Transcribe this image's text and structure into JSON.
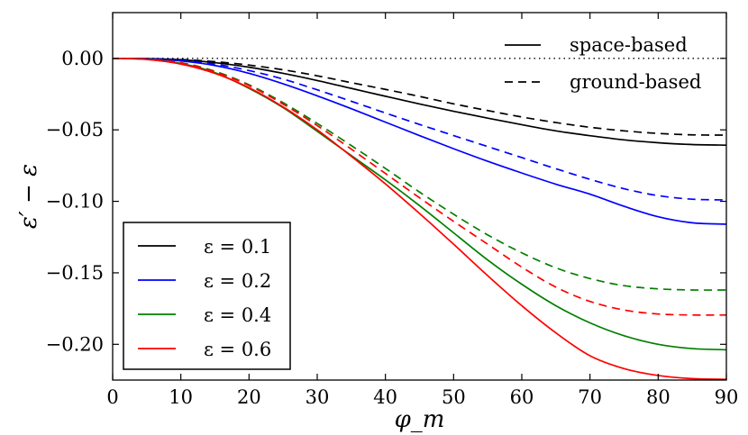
{
  "chart_data": {
    "type": "line",
    "title": "",
    "xlabel": "φ_m",
    "ylabel": "ε′ − ε",
    "xlim": [
      0,
      90
    ],
    "ylim": [
      -0.225,
      0.032
    ],
    "x_ticks": [
      0,
      10,
      20,
      30,
      40,
      50,
      60,
      70,
      80,
      90
    ],
    "y_ticks": [
      0.0,
      -0.05,
      -0.1,
      -0.15,
      -0.2
    ],
    "x_tick_labels": [
      "0",
      "10",
      "20",
      "30",
      "40",
      "50",
      "60",
      "70",
      "80",
      "90"
    ],
    "y_tick_labels": [
      "0.00",
      "−0.05",
      "−0.10",
      "−0.15",
      "−0.20"
    ],
    "x": [
      0,
      5,
      10,
      15,
      20,
      25,
      30,
      35,
      40,
      45,
      50,
      55,
      60,
      65,
      70,
      75,
      80,
      85,
      90
    ],
    "series": [
      {
        "name": "ε = 0.1 space-based",
        "epsilon": "0.1",
        "color": "#000000",
        "style": "solid",
        "values": [
          0,
          -0.0002,
          -0.001,
          -0.003,
          -0.0062,
          -0.0105,
          -0.0155,
          -0.021,
          -0.0265,
          -0.0319,
          -0.037,
          -0.0418,
          -0.0464,
          -0.0507,
          -0.0541,
          -0.057,
          -0.059,
          -0.0603,
          -0.0607
        ]
      },
      {
        "name": "ε = 0.1 ground-based",
        "epsilon": "0.1",
        "color": "#000000",
        "style": "dashed",
        "values": [
          0,
          -0.0002,
          -0.0008,
          -0.0023,
          -0.0047,
          -0.008,
          -0.0122,
          -0.017,
          -0.0217,
          -0.0266,
          -0.0318,
          -0.0365,
          -0.041,
          -0.0449,
          -0.0482,
          -0.0507,
          -0.0525,
          -0.0535,
          -0.0537
        ]
      },
      {
        "name": "ε = 0.2 space-based",
        "epsilon": "0.2",
        "color": "#0000ff",
        "style": "solid",
        "values": [
          0,
          -0.0004,
          -0.0018,
          -0.005,
          -0.0105,
          -0.0178,
          -0.0262,
          -0.0352,
          -0.0446,
          -0.054,
          -0.0632,
          -0.072,
          -0.0802,
          -0.088,
          -0.095,
          -0.1035,
          -0.1108,
          -0.115,
          -0.116
        ]
      },
      {
        "name": "ε = 0.2 ground-based",
        "epsilon": "0.2",
        "color": "#0000ff",
        "style": "dashed",
        "values": [
          0,
          -0.0003,
          -0.0014,
          -0.004,
          -0.0085,
          -0.0145,
          -0.022,
          -0.03,
          -0.0382,
          -0.0462,
          -0.054,
          -0.0617,
          -0.0694,
          -0.0772,
          -0.0846,
          -0.0912,
          -0.096,
          -0.0985,
          -0.099
        ]
      },
      {
        "name": "ε = 0.4 space-based",
        "epsilon": "0.4",
        "color": "#008000",
        "style": "solid",
        "values": [
          0,
          -0.0007,
          -0.0036,
          -0.01,
          -0.021,
          -0.0345,
          -0.051,
          -0.068,
          -0.085,
          -0.103,
          -0.122,
          -0.141,
          -0.158,
          -0.173,
          -0.185,
          -0.194,
          -0.2,
          -0.203,
          -0.2038
        ]
      },
      {
        "name": "ε = 0.4 ground-based",
        "epsilon": "0.4",
        "color": "#008000",
        "style": "dashed",
        "values": [
          0,
          -0.0006,
          -0.003,
          -0.009,
          -0.0185,
          -0.031,
          -0.0455,
          -0.061,
          -0.077,
          -0.0935,
          -0.109,
          -0.1235,
          -0.136,
          -0.1465,
          -0.154,
          -0.159,
          -0.1612,
          -0.162,
          -0.162
        ]
      },
      {
        "name": "ε = 0.6 space-based",
        "epsilon": "0.6",
        "color": "#ff0000",
        "style": "solid",
        "values": [
          0,
          -0.0008,
          -0.004,
          -0.0105,
          -0.0205,
          -0.034,
          -0.05,
          -0.0685,
          -0.0878,
          -0.1085,
          -0.13,
          -0.152,
          -0.173,
          -0.192,
          -0.208,
          -0.217,
          -0.2218,
          -0.224,
          -0.2245
        ]
      },
      {
        "name": "ε = 0.6 ground-based",
        "epsilon": "0.6",
        "color": "#ff0000",
        "style": "dashed",
        "values": [
          0,
          -0.0006,
          -0.0032,
          -0.0095,
          -0.019,
          -0.032,
          -0.047,
          -0.0635,
          -0.0805,
          -0.0975,
          -0.114,
          -0.13,
          -0.146,
          -0.16,
          -0.17,
          -0.176,
          -0.1788,
          -0.1795,
          -0.1795
        ]
      }
    ],
    "reference_line": {
      "y": 0,
      "style": "dotted",
      "color": "#000000"
    },
    "legend_style": {
      "position": "top-right",
      "items": [
        {
          "label": "space-based",
          "style": "solid"
        },
        {
          "label": "ground-based",
          "style": "dashed"
        }
      ]
    },
    "legend_epsilon": {
      "position": "bottom-left",
      "items": [
        {
          "label": "ε = 0.1",
          "color": "#000000"
        },
        {
          "label": "ε = 0.2",
          "color": "#0000ff"
        },
        {
          "label": "ε = 0.4",
          "color": "#008000"
        },
        {
          "label": "ε = 0.6",
          "color": "#ff0000"
        }
      ]
    }
  }
}
